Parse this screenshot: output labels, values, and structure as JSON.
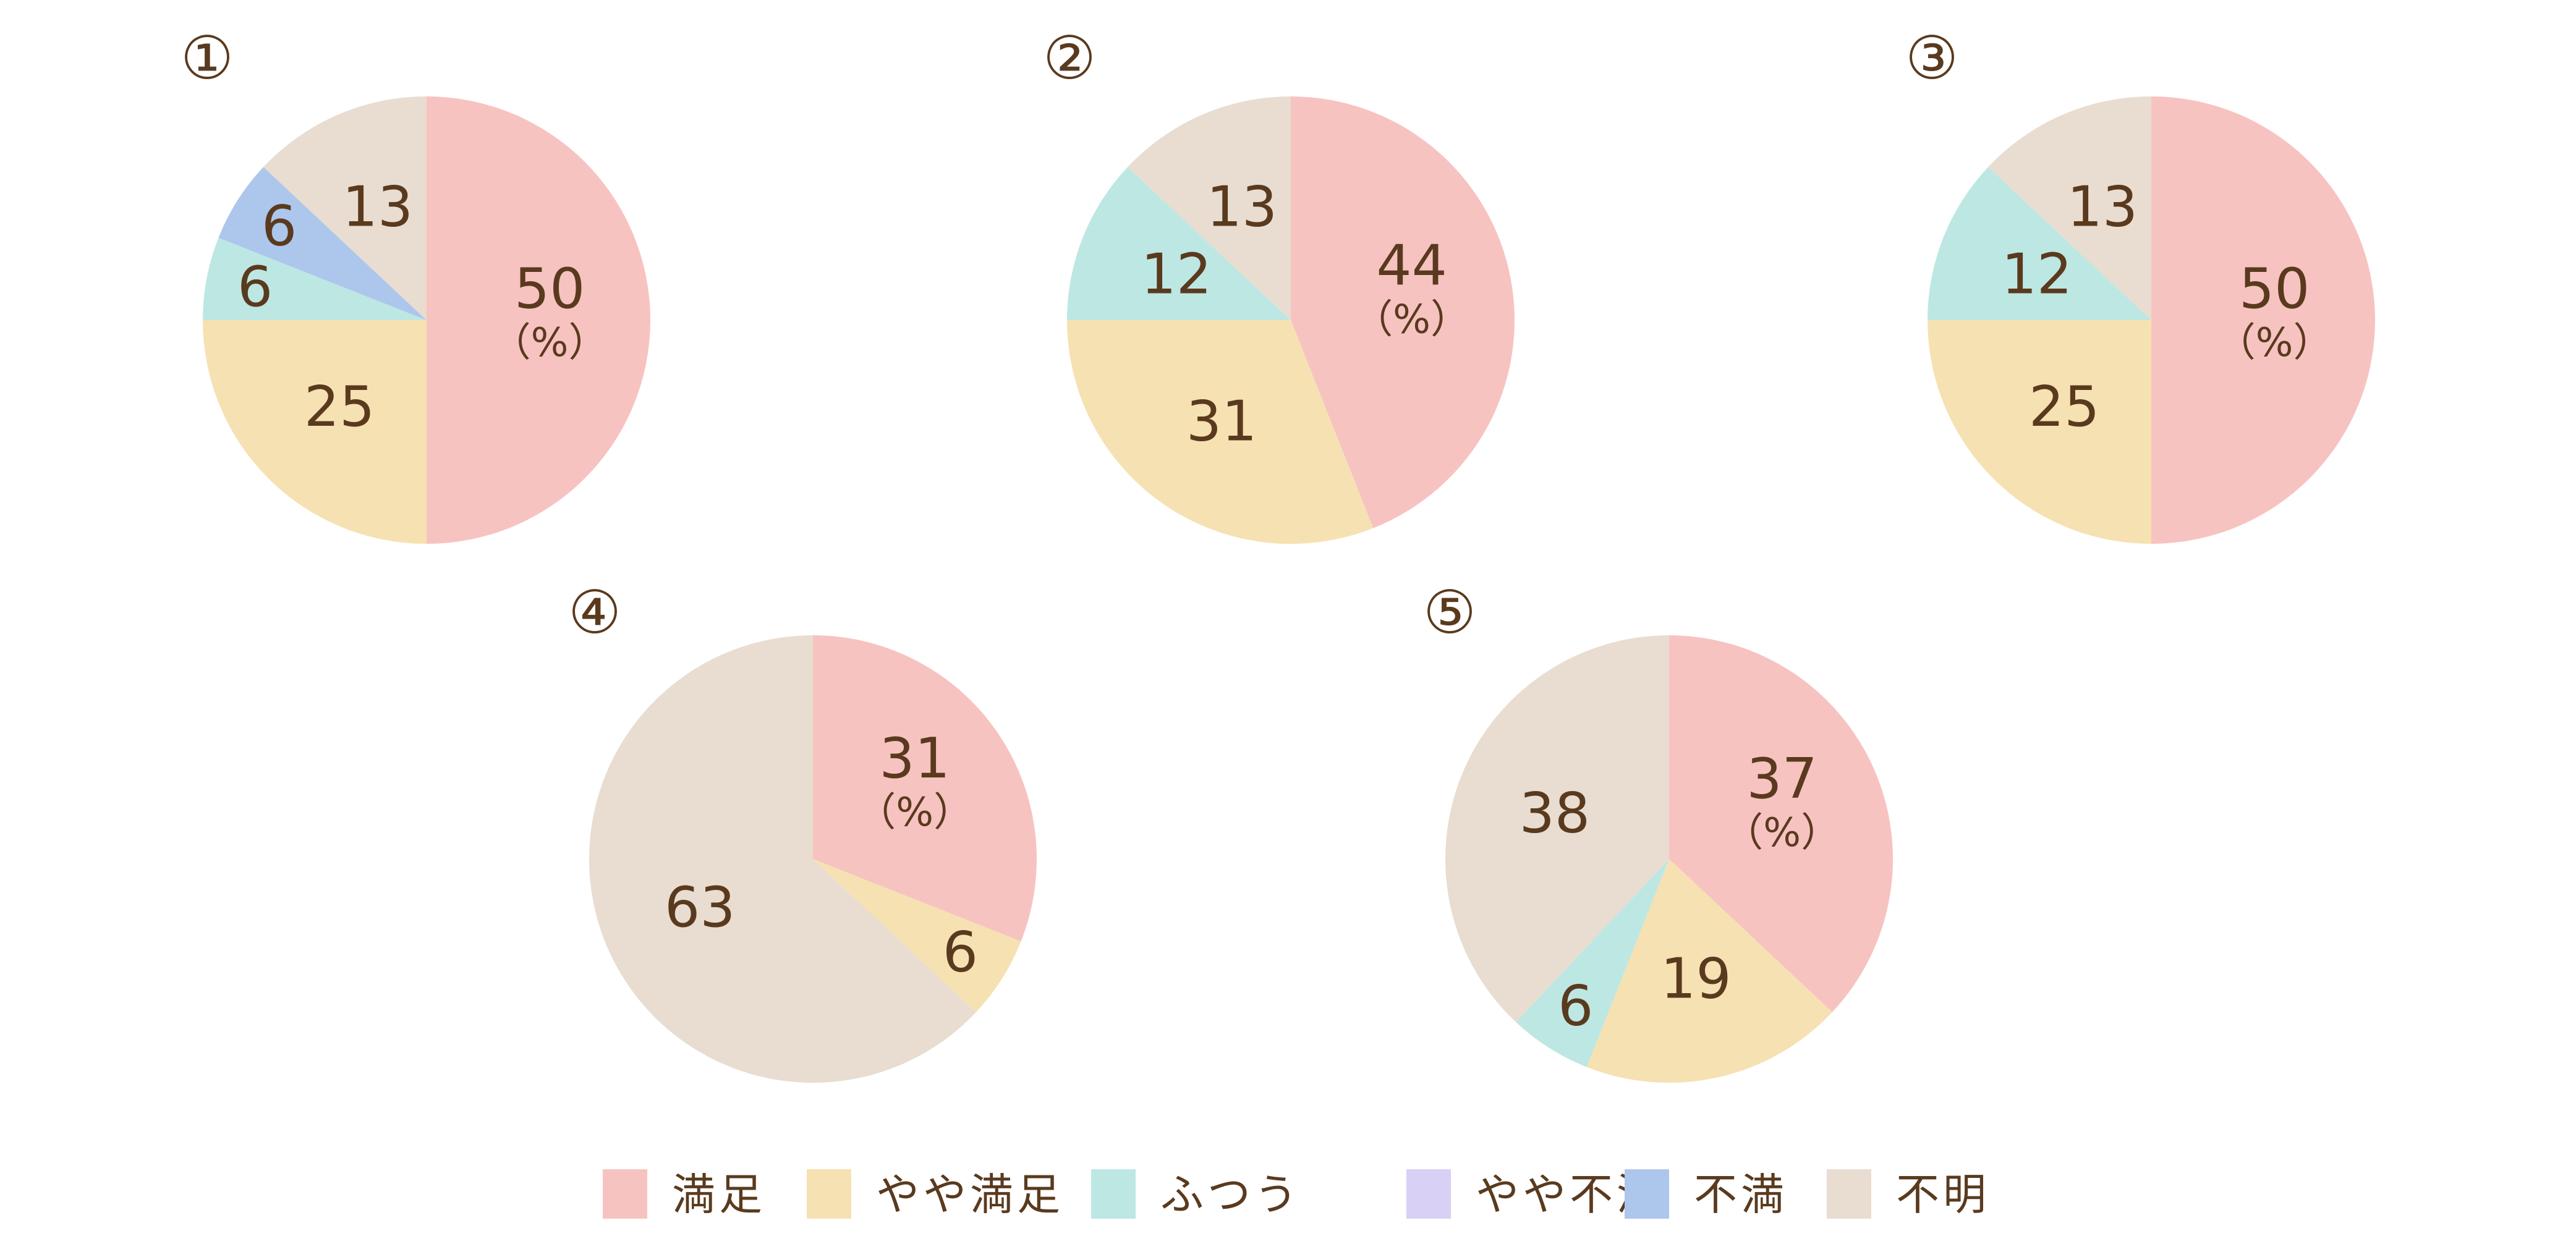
{
  "chart_data": {
    "type": "pie",
    "legend": {
      "placement": "bottom",
      "entries": [
        {
          "name": "満足",
          "color": "#f7c3c1"
        },
        {
          "name": "やや満足",
          "color": "#f6e1b2"
        },
        {
          "name": "ふつう",
          "color": "#bde7e3"
        },
        {
          "name": "やや不満",
          "color": "#d9d0f5"
        },
        {
          "name": "不満",
          "color": "#adc6ec"
        },
        {
          "name": "不明",
          "color": "#e8ddd0"
        }
      ]
    },
    "unit": "（%）",
    "charts": [
      {
        "marker": "①",
        "values": [
          50,
          25,
          6,
          0,
          6,
          13
        ]
      },
      {
        "marker": "②",
        "values": [
          44,
          31,
          12,
          0,
          0,
          13
        ]
      },
      {
        "marker": "③",
        "values": [
          50,
          25,
          12,
          0,
          0,
          13
        ]
      },
      {
        "marker": "④",
        "values": [
          31,
          6,
          0,
          0,
          0,
          63
        ]
      },
      {
        "marker": "⑤",
        "values": [
          37,
          19,
          6,
          0,
          0,
          38
        ]
      }
    ]
  }
}
